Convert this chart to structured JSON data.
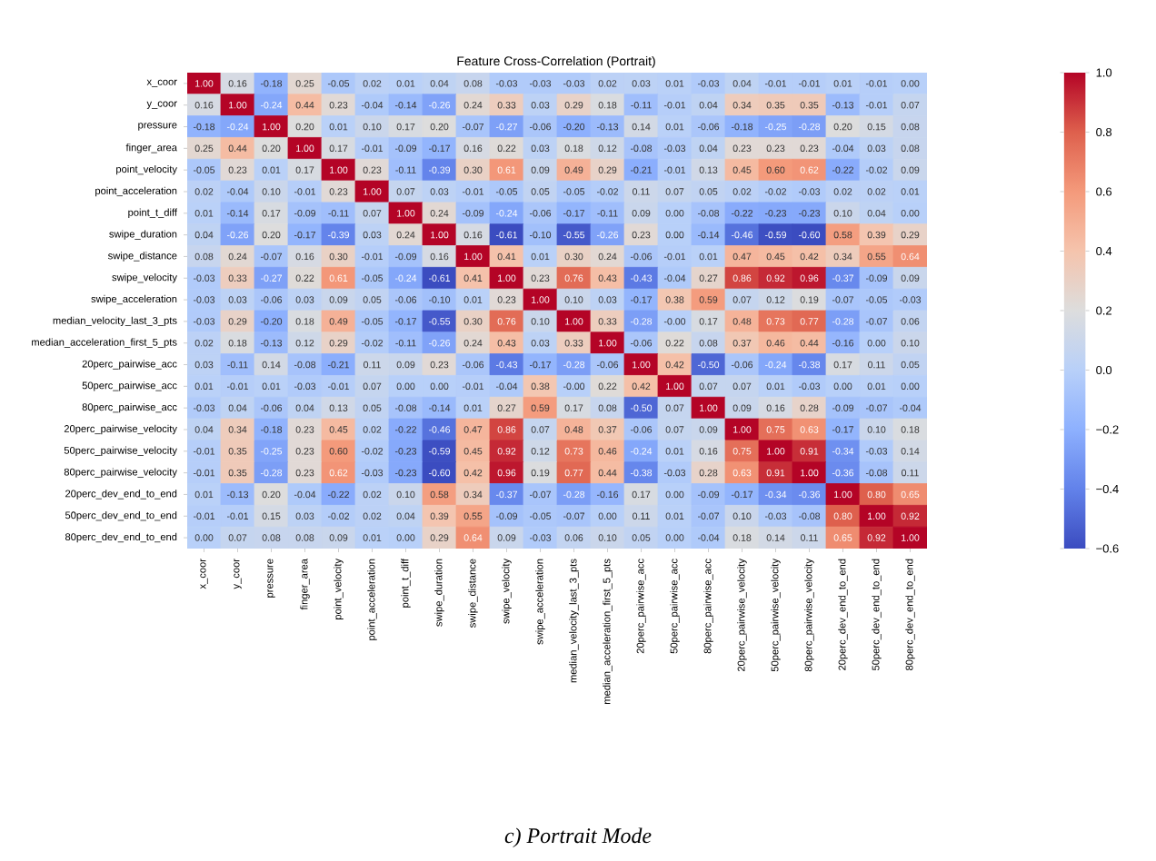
{
  "chart_data": {
    "type": "heatmap",
    "title": "Feature Cross-Correlation (Portrait)",
    "categories": [
      "x_coor",
      "y_coor",
      "pressure",
      "finger_area",
      "point_velocity",
      "point_acceleration",
      "point_t_diff",
      "swipe_duration",
      "swipe_distance",
      "swipe_velocity",
      "swipe_acceleration",
      "median_velocity_last_3_pts",
      "median_acceleration_first_5_pts",
      "20perc_pairwise_acc",
      "50perc_pairwise_acc",
      "80perc_pairwise_acc",
      "20perc_pairwise_velocity",
      "50perc_pairwise_velocity",
      "80perc_pairwise_velocity",
      "20perc_dev_end_to_end",
      "50perc_dev_end_to_end",
      "80perc_dev_end_to_end"
    ],
    "y_categories": [
      "x_coor",
      "y_coor",
      "pressure",
      "finger_area",
      "point_velocity",
      "point_acceleration",
      "point_t_diff",
      "swipe_duration",
      "swipe_distance",
      "swipe_velocity",
      "swipe_acceleration",
      "median_velocity_last_3_pts",
      "median_acceleration_first_5_pts",
      "20perc_pairwise_acc",
      "50perc_pairwise_acc",
      "80perc_pairwise_acc",
      "20perc_pairwise_velocity",
      "50perc_pairwise_velocity",
      "80perc_pairwise_velocity",
      "20perc_dev_end_to_end",
      "50perc_dev_end_to_end",
      "80perc_dev_end_to_end"
    ],
    "cells": [
      [
        1.0,
        0.16,
        -0.18,
        0.25,
        -0.05,
        0.02,
        0.01,
        0.04,
        0.08,
        -0.03,
        -0.03,
        -0.03,
        0.02,
        0.03,
        0.01,
        -0.03,
        0.04,
        -0.01,
        -0.01,
        0.01,
        -0.01,
        0.0
      ],
      [
        0.16,
        1.0,
        -0.24,
        0.44,
        0.23,
        -0.04,
        -0.14,
        -0.26,
        0.24,
        0.33,
        0.03,
        0.29,
        0.18,
        -0.11,
        -0.01,
        0.04,
        0.34,
        0.35,
        0.35,
        -0.13,
        -0.01,
        0.07
      ],
      [
        -0.18,
        -0.24,
        1.0,
        0.2,
        0.01,
        0.1,
        0.17,
        0.2,
        -0.07,
        -0.27,
        -0.06,
        -0.2,
        -0.13,
        0.14,
        0.01,
        -0.06,
        -0.18,
        -0.25,
        -0.28,
        0.2,
        0.15,
        0.08
      ],
      [
        0.25,
        0.44,
        0.2,
        1.0,
        0.17,
        -0.01,
        -0.09,
        -0.17,
        0.16,
        0.22,
        0.03,
        0.18,
        0.12,
        -0.08,
        -0.03,
        0.04,
        0.23,
        0.23,
        0.23,
        -0.04,
        0.03,
        0.08
      ],
      [
        -0.05,
        0.23,
        0.01,
        0.17,
        1.0,
        0.23,
        -0.11,
        -0.39,
        0.3,
        0.61,
        0.09,
        0.49,
        0.29,
        -0.21,
        -0.01,
        0.13,
        0.45,
        0.6,
        0.62,
        -0.22,
        -0.02,
        0.09
      ],
      [
        0.02,
        -0.04,
        0.1,
        -0.01,
        0.23,
        1.0,
        0.07,
        0.03,
        -0.01,
        -0.05,
        0.05,
        -0.05,
        -0.02,
        0.11,
        0.07,
        0.05,
        0.02,
        -0.02,
        -0.03,
        0.02,
        0.02,
        0.01
      ],
      [
        0.01,
        -0.14,
        0.17,
        -0.09,
        -0.11,
        0.07,
        1.0,
        0.24,
        -0.09,
        -0.24,
        -0.06,
        -0.17,
        -0.11,
        0.09,
        0.0,
        -0.08,
        -0.22,
        -0.23,
        -0.23,
        0.1,
        0.04,
        0.0
      ],
      [
        0.04,
        -0.26,
        0.2,
        -0.17,
        -0.39,
        0.03,
        0.24,
        1.0,
        0.16,
        -0.61,
        -0.1,
        -0.55,
        -0.26,
        0.23,
        0.0,
        -0.14,
        -0.46,
        -0.59,
        -0.6,
        0.58,
        0.39,
        0.29
      ],
      [
        0.08,
        0.24,
        -0.07,
        0.16,
        0.3,
        -0.01,
        -0.09,
        0.16,
        1.0,
        0.41,
        0.01,
        0.3,
        0.24,
        -0.06,
        -0.01,
        0.01,
        0.47,
        0.45,
        0.42,
        0.34,
        0.55,
        0.64
      ],
      [
        -0.03,
        0.33,
        -0.27,
        0.22,
        0.61,
        -0.05,
        -0.24,
        -0.61,
        0.41,
        1.0,
        0.23,
        0.76,
        0.43,
        -0.43,
        -0.04,
        0.27,
        0.86,
        0.92,
        0.96,
        -0.37,
        -0.09,
        0.09
      ],
      [
        -0.03,
        0.03,
        -0.06,
        0.03,
        0.09,
        0.05,
        -0.06,
        -0.1,
        0.01,
        0.23,
        1.0,
        0.1,
        0.03,
        -0.17,
        0.38,
        0.59,
        0.07,
        0.12,
        0.19,
        -0.07,
        -0.05,
        -0.03
      ],
      [
        -0.03,
        0.29,
        -0.2,
        0.18,
        0.49,
        -0.05,
        -0.17,
        -0.55,
        0.3,
        0.76,
        0.1,
        1.0,
        0.33,
        -0.28,
        -0.0,
        0.17,
        0.48,
        0.73,
        0.77,
        -0.28,
        -0.07,
        0.06
      ],
      [
        0.02,
        0.18,
        -0.13,
        0.12,
        0.29,
        -0.02,
        -0.11,
        -0.26,
        0.24,
        0.43,
        0.03,
        0.33,
        1.0,
        -0.06,
        0.22,
        0.08,
        0.37,
        0.46,
        0.44,
        -0.16,
        0.0,
        0.1
      ],
      [
        0.03,
        -0.11,
        0.14,
        -0.08,
        -0.21,
        0.11,
        0.09,
        0.23,
        -0.06,
        -0.43,
        -0.17,
        -0.28,
        -0.06,
        1.0,
        0.42,
        -0.5,
        -0.06,
        -0.24,
        -0.38,
        0.17,
        0.11,
        0.05
      ],
      [
        0.01,
        -0.01,
        0.01,
        -0.03,
        -0.01,
        0.07,
        0.0,
        0.0,
        -0.01,
        -0.04,
        0.38,
        -0.0,
        0.22,
        0.42,
        1.0,
        0.07,
        0.07,
        0.01,
        -0.03,
        0.0,
        0.01,
        0.0
      ],
      [
        -0.03,
        0.04,
        -0.06,
        0.04,
        0.13,
        0.05,
        -0.08,
        -0.14,
        0.01,
        0.27,
        0.59,
        0.17,
        0.08,
        -0.5,
        0.07,
        1.0,
        0.09,
        0.16,
        0.28,
        -0.09,
        -0.07,
        -0.04
      ],
      [
        0.04,
        0.34,
        -0.18,
        0.23,
        0.45,
        0.02,
        -0.22,
        -0.46,
        0.47,
        0.86,
        0.07,
        0.48,
        0.37,
        -0.06,
        0.07,
        0.09,
        1.0,
        0.75,
        0.63,
        -0.17,
        0.1,
        0.18
      ],
      [
        -0.01,
        0.35,
        -0.25,
        0.23,
        0.6,
        -0.02,
        -0.23,
        -0.59,
        0.45,
        0.92,
        0.12,
        0.73,
        0.46,
        -0.24,
        0.01,
        0.16,
        0.75,
        1.0,
        0.91,
        -0.34,
        -0.03,
        0.14
      ],
      [
        -0.01,
        0.35,
        -0.28,
        0.23,
        0.62,
        -0.03,
        -0.23,
        -0.6,
        0.42,
        0.96,
        0.19,
        0.77,
        0.44,
        -0.38,
        -0.03,
        0.28,
        0.63,
        0.91,
        1.0,
        -0.36,
        -0.08,
        0.11
      ],
      [
        0.01,
        -0.13,
        0.2,
        -0.04,
        -0.22,
        0.02,
        0.1,
        0.58,
        0.34,
        -0.37,
        -0.07,
        -0.28,
        -0.16,
        0.17,
        0.0,
        -0.09,
        -0.17,
        -0.34,
        -0.36,
        1.0,
        0.8,
        0.65
      ],
      [
        -0.01,
        -0.01,
        0.15,
        0.03,
        -0.02,
        0.02,
        0.04,
        0.39,
        0.55,
        -0.09,
        -0.05,
        -0.07,
        0.0,
        0.11,
        0.01,
        -0.07,
        0.1,
        -0.03,
        -0.08,
        0.8,
        1.0,
        0.92
      ],
      [
        0.0,
        0.07,
        0.08,
        0.08,
        0.09,
        0.01,
        0.0,
        0.29,
        0.64,
        0.09,
        -0.03,
        0.06,
        0.1,
        0.05,
        0.0,
        -0.04,
        0.18,
        0.14,
        0.11,
        0.65,
        0.92,
        1.0
      ]
    ],
    "cell_labels": [
      [
        "1.00",
        "0.16",
        "-0.18",
        "0.25",
        "-0.05",
        "0.02",
        "0.01",
        "0.04",
        "0.08",
        "-0.03",
        "-0.03",
        "-0.03",
        "0.02",
        "0.03",
        "0.01",
        "-0.03",
        "0.04",
        "-0.01",
        "-0.01",
        "0.01",
        "-0.01",
        "0.00"
      ],
      [
        "0.16",
        "1.00",
        "-0.24",
        "0.44",
        "0.23",
        "-0.04",
        "-0.14",
        "-0.26",
        "0.24",
        "0.33",
        "0.03",
        "0.29",
        "0.18",
        "-0.11",
        "-0.01",
        "0.04",
        "0.34",
        "0.35",
        "0.35",
        "-0.13",
        "-0.01",
        "0.07"
      ],
      [
        "-0.18",
        "-0.24",
        "1.00",
        "0.20",
        "0.01",
        "0.10",
        "0.17",
        "0.20",
        "-0.07",
        "-0.27",
        "-0.06",
        "-0.20",
        "-0.13",
        "0.14",
        "0.01",
        "-0.06",
        "-0.18",
        "-0.25",
        "-0.28",
        "0.20",
        "0.15",
        "0.08"
      ],
      [
        "0.25",
        "0.44",
        "0.20",
        "1.00",
        "0.17",
        "-0.01",
        "-0.09",
        "-0.17",
        "0.16",
        "0.22",
        "0.03",
        "0.18",
        "0.12",
        "-0.08",
        "-0.03",
        "0.04",
        "0.23",
        "0.23",
        "0.23",
        "-0.04",
        "0.03",
        "0.08"
      ],
      [
        "-0.05",
        "0.23",
        "0.01",
        "0.17",
        "1.00",
        "0.23",
        "-0.11",
        "-0.39",
        "0.30",
        "0.61",
        "0.09",
        "0.49",
        "0.29",
        "-0.21",
        "-0.01",
        "0.13",
        "0.45",
        "0.60",
        "0.62",
        "-0.22",
        "-0.02",
        "0.09"
      ],
      [
        "0.02",
        "-0.04",
        "0.10",
        "-0.01",
        "0.23",
        "1.00",
        "0.07",
        "0.03",
        "-0.01",
        "-0.05",
        "0.05",
        "-0.05",
        "-0.02",
        "0.11",
        "0.07",
        "0.05",
        "0.02",
        "-0.02",
        "-0.03",
        "0.02",
        "0.02",
        "0.01"
      ],
      [
        "0.01",
        "-0.14",
        "0.17",
        "-0.09",
        "-0.11",
        "0.07",
        "1.00",
        "0.24",
        "-0.09",
        "-0.24",
        "-0.06",
        "-0.17",
        "-0.11",
        "0.09",
        "0.00",
        "-0.08",
        "-0.22",
        "-0.23",
        "-0.23",
        "0.10",
        "0.04",
        "0.00"
      ],
      [
        "0.04",
        "-0.26",
        "0.20",
        "-0.17",
        "-0.39",
        "0.03",
        "0.24",
        "1.00",
        "0.16",
        "-0.61",
        "-0.10",
        "-0.55",
        "-0.26",
        "0.23",
        "0.00",
        "-0.14",
        "-0.46",
        "-0.59",
        "-0.60",
        "0.58",
        "0.39",
        "0.29"
      ],
      [
        "0.08",
        "0.24",
        "-0.07",
        "0.16",
        "0.30",
        "-0.01",
        "-0.09",
        "0.16",
        "1.00",
        "0.41",
        "0.01",
        "0.30",
        "0.24",
        "-0.06",
        "-0.01",
        "0.01",
        "0.47",
        "0.45",
        "0.42",
        "0.34",
        "0.55",
        "0.64"
      ],
      [
        "-0.03",
        "0.33",
        "-0.27",
        "0.22",
        "0.61",
        "-0.05",
        "-0.24",
        "-0.61",
        "0.41",
        "1.00",
        "0.23",
        "0.76",
        "0.43",
        "-0.43",
        "-0.04",
        "0.27",
        "0.86",
        "0.92",
        "0.96",
        "-0.37",
        "-0.09",
        "0.09"
      ],
      [
        "-0.03",
        "0.03",
        "-0.06",
        "0.03",
        "0.09",
        "0.05",
        "-0.06",
        "-0.10",
        "0.01",
        "0.23",
        "1.00",
        "0.10",
        "0.03",
        "-0.17",
        "0.38",
        "0.59",
        "0.07",
        "0.12",
        "0.19",
        "-0.07",
        "-0.05",
        "-0.03"
      ],
      [
        "-0.03",
        "0.29",
        "-0.20",
        "0.18",
        "0.49",
        "-0.05",
        "-0.17",
        "-0.55",
        "0.30",
        "0.76",
        "0.10",
        "1.00",
        "0.33",
        "-0.28",
        "-0.00",
        "0.17",
        "0.48",
        "0.73",
        "0.77",
        "-0.28",
        "-0.07",
        "0.06"
      ],
      [
        "0.02",
        "0.18",
        "-0.13",
        "0.12",
        "0.29",
        "-0.02",
        "-0.11",
        "-0.26",
        "0.24",
        "0.43",
        "0.03",
        "0.33",
        "1.00",
        "-0.06",
        "0.22",
        "0.08",
        "0.37",
        "0.46",
        "0.44",
        "-0.16",
        "0.00",
        "0.10"
      ],
      [
        "0.03",
        "-0.11",
        "0.14",
        "-0.08",
        "-0.21",
        "0.11",
        "0.09",
        "0.23",
        "-0.06",
        "-0.43",
        "-0.17",
        "-0.28",
        "-0.06",
        "1.00",
        "0.42",
        "-0.50",
        "-0.06",
        "-0.24",
        "-0.38",
        "0.17",
        "0.11",
        "0.05"
      ],
      [
        "0.01",
        "-0.01",
        "0.01",
        "-0.03",
        "-0.01",
        "0.07",
        "0.00",
        "0.00",
        "-0.01",
        "-0.04",
        "0.38",
        "-0.00",
        "0.22",
        "0.42",
        "1.00",
        "0.07",
        "0.07",
        "0.01",
        "-0.03",
        "0.00",
        "0.01",
        "0.00"
      ],
      [
        "-0.03",
        "0.04",
        "-0.06",
        "0.04",
        "0.13",
        "0.05",
        "-0.08",
        "-0.14",
        "0.01",
        "0.27",
        "0.59",
        "0.17",
        "0.08",
        "-0.50",
        "0.07",
        "1.00",
        "0.09",
        "0.16",
        "0.28",
        "-0.09",
        "-0.07",
        "-0.04"
      ],
      [
        "0.04",
        "0.34",
        "-0.18",
        "0.23",
        "0.45",
        "0.02",
        "-0.22",
        "-0.46",
        "0.47",
        "0.86",
        "0.07",
        "0.48",
        "0.37",
        "-0.06",
        "0.07",
        "0.09",
        "1.00",
        "0.75",
        "0.63",
        "-0.17",
        "0.10",
        "0.18"
      ],
      [
        "-0.01",
        "0.35",
        "-0.25",
        "0.23",
        "0.60",
        "-0.02",
        "-0.23",
        "-0.59",
        "0.45",
        "0.92",
        "0.12",
        "0.73",
        "0.46",
        "-0.24",
        "0.01",
        "0.16",
        "0.75",
        "1.00",
        "0.91",
        "-0.34",
        "-0.03",
        "0.14"
      ],
      [
        "-0.01",
        "0.35",
        "-0.28",
        "0.23",
        "0.62",
        "-0.03",
        "-0.23",
        "-0.60",
        "0.42",
        "0.96",
        "0.19",
        "0.77",
        "0.44",
        "-0.38",
        "-0.03",
        "0.28",
        "0.63",
        "0.91",
        "1.00",
        "-0.36",
        "-0.08",
        "0.11"
      ],
      [
        "0.01",
        "-0.13",
        "0.20",
        "-0.04",
        "-0.22",
        "0.02",
        "0.10",
        "0.58",
        "0.34",
        "-0.37",
        "-0.07",
        "-0.28",
        "-0.16",
        "0.17",
        "0.00",
        "-0.09",
        "-0.17",
        "-0.34",
        "-0.36",
        "1.00",
        "0.80",
        "0.65"
      ],
      [
        "-0.01",
        "-0.01",
        "0.15",
        "0.03",
        "-0.02",
        "0.02",
        "0.04",
        "0.39",
        "0.55",
        "-0.09",
        "-0.05",
        "-0.07",
        "0.00",
        "0.11",
        "0.01",
        "-0.07",
        "0.10",
        "-0.03",
        "-0.08",
        "0.80",
        "1.00",
        "0.92"
      ],
      [
        "0.00",
        "0.07",
        "0.08",
        "0.08",
        "0.09",
        "0.01",
        "0.00",
        "0.29",
        "0.64",
        "0.09",
        "-0.03",
        "0.06",
        "0.10",
        "0.05",
        "0.00",
        "-0.04",
        "0.18",
        "0.14",
        "0.11",
        "0.65",
        "0.92",
        "1.00"
      ]
    ],
    "clim": [
      -0.6,
      1.0
    ],
    "cticks": [
      {
        "value": -0.6,
        "label": "−0.6"
      },
      {
        "value": -0.4,
        "label": "−0.4"
      },
      {
        "value": -0.2,
        "label": "−0.2"
      },
      {
        "value": 0.0,
        "label": "0.0"
      },
      {
        "value": 0.2,
        "label": "0.2"
      },
      {
        "value": 0.4,
        "label": "0.4"
      },
      {
        "value": 0.6,
        "label": "0.6"
      },
      {
        "value": 0.8,
        "label": "0.8"
      },
      {
        "value": 1.0,
        "label": "1.0"
      }
    ],
    "annotations": [
      "c)   Portrait Mode"
    ]
  }
}
